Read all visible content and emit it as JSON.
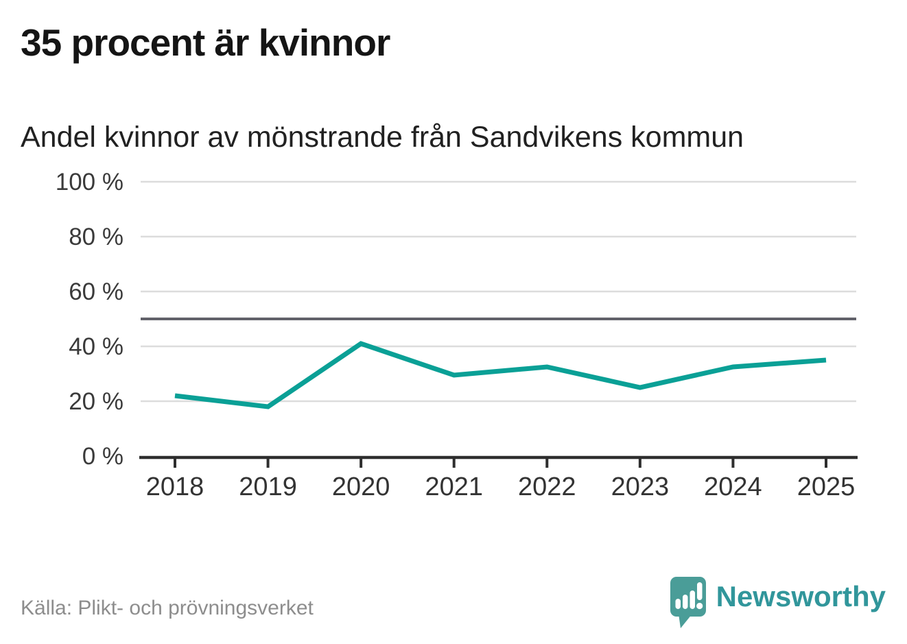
{
  "header": {
    "title": "35 procent är kvinnor",
    "subtitle": "Andel kvinnor av mönstrande från Sandvikens kommun"
  },
  "chart_data": {
    "type": "line",
    "title": "35 procent är kvinnor",
    "subtitle": "Andel kvinnor av mönstrande från Sandvikens kommun",
    "categories": [
      "2018",
      "2019",
      "2020",
      "2021",
      "2022",
      "2023",
      "2024",
      "2025"
    ],
    "series": [
      {
        "name": "Andel kvinnor av mönstrande, Sandvikens kommun",
        "values": [
          22,
          18,
          41,
          29.5,
          32.5,
          25,
          32.5,
          35
        ]
      }
    ],
    "unit": "%",
    "xlabel": "",
    "ylabel": "",
    "ylim": [
      0,
      100
    ],
    "yticks": [
      0,
      20,
      40,
      60,
      80,
      100
    ],
    "ytick_suffix": " %",
    "reference_line": 50,
    "grid": true,
    "legend": "none",
    "line_color": "#0aa096",
    "grid_color": "#dcdcdc",
    "reference_line_color": "#62626a",
    "axis_color": "#2e2e2e",
    "tick_label_color": "#3a3a3a"
  },
  "footer": {
    "source": "Källa: Plikt- och prövningsverket",
    "logo_text": "Newsworthy"
  },
  "colors": {
    "accent_line": "#0aa096",
    "brand_teal": "#4a9d98",
    "brand_text_teal": "#31969b",
    "headline_text": "#151515",
    "muted_text": "#8d8d8d"
  }
}
